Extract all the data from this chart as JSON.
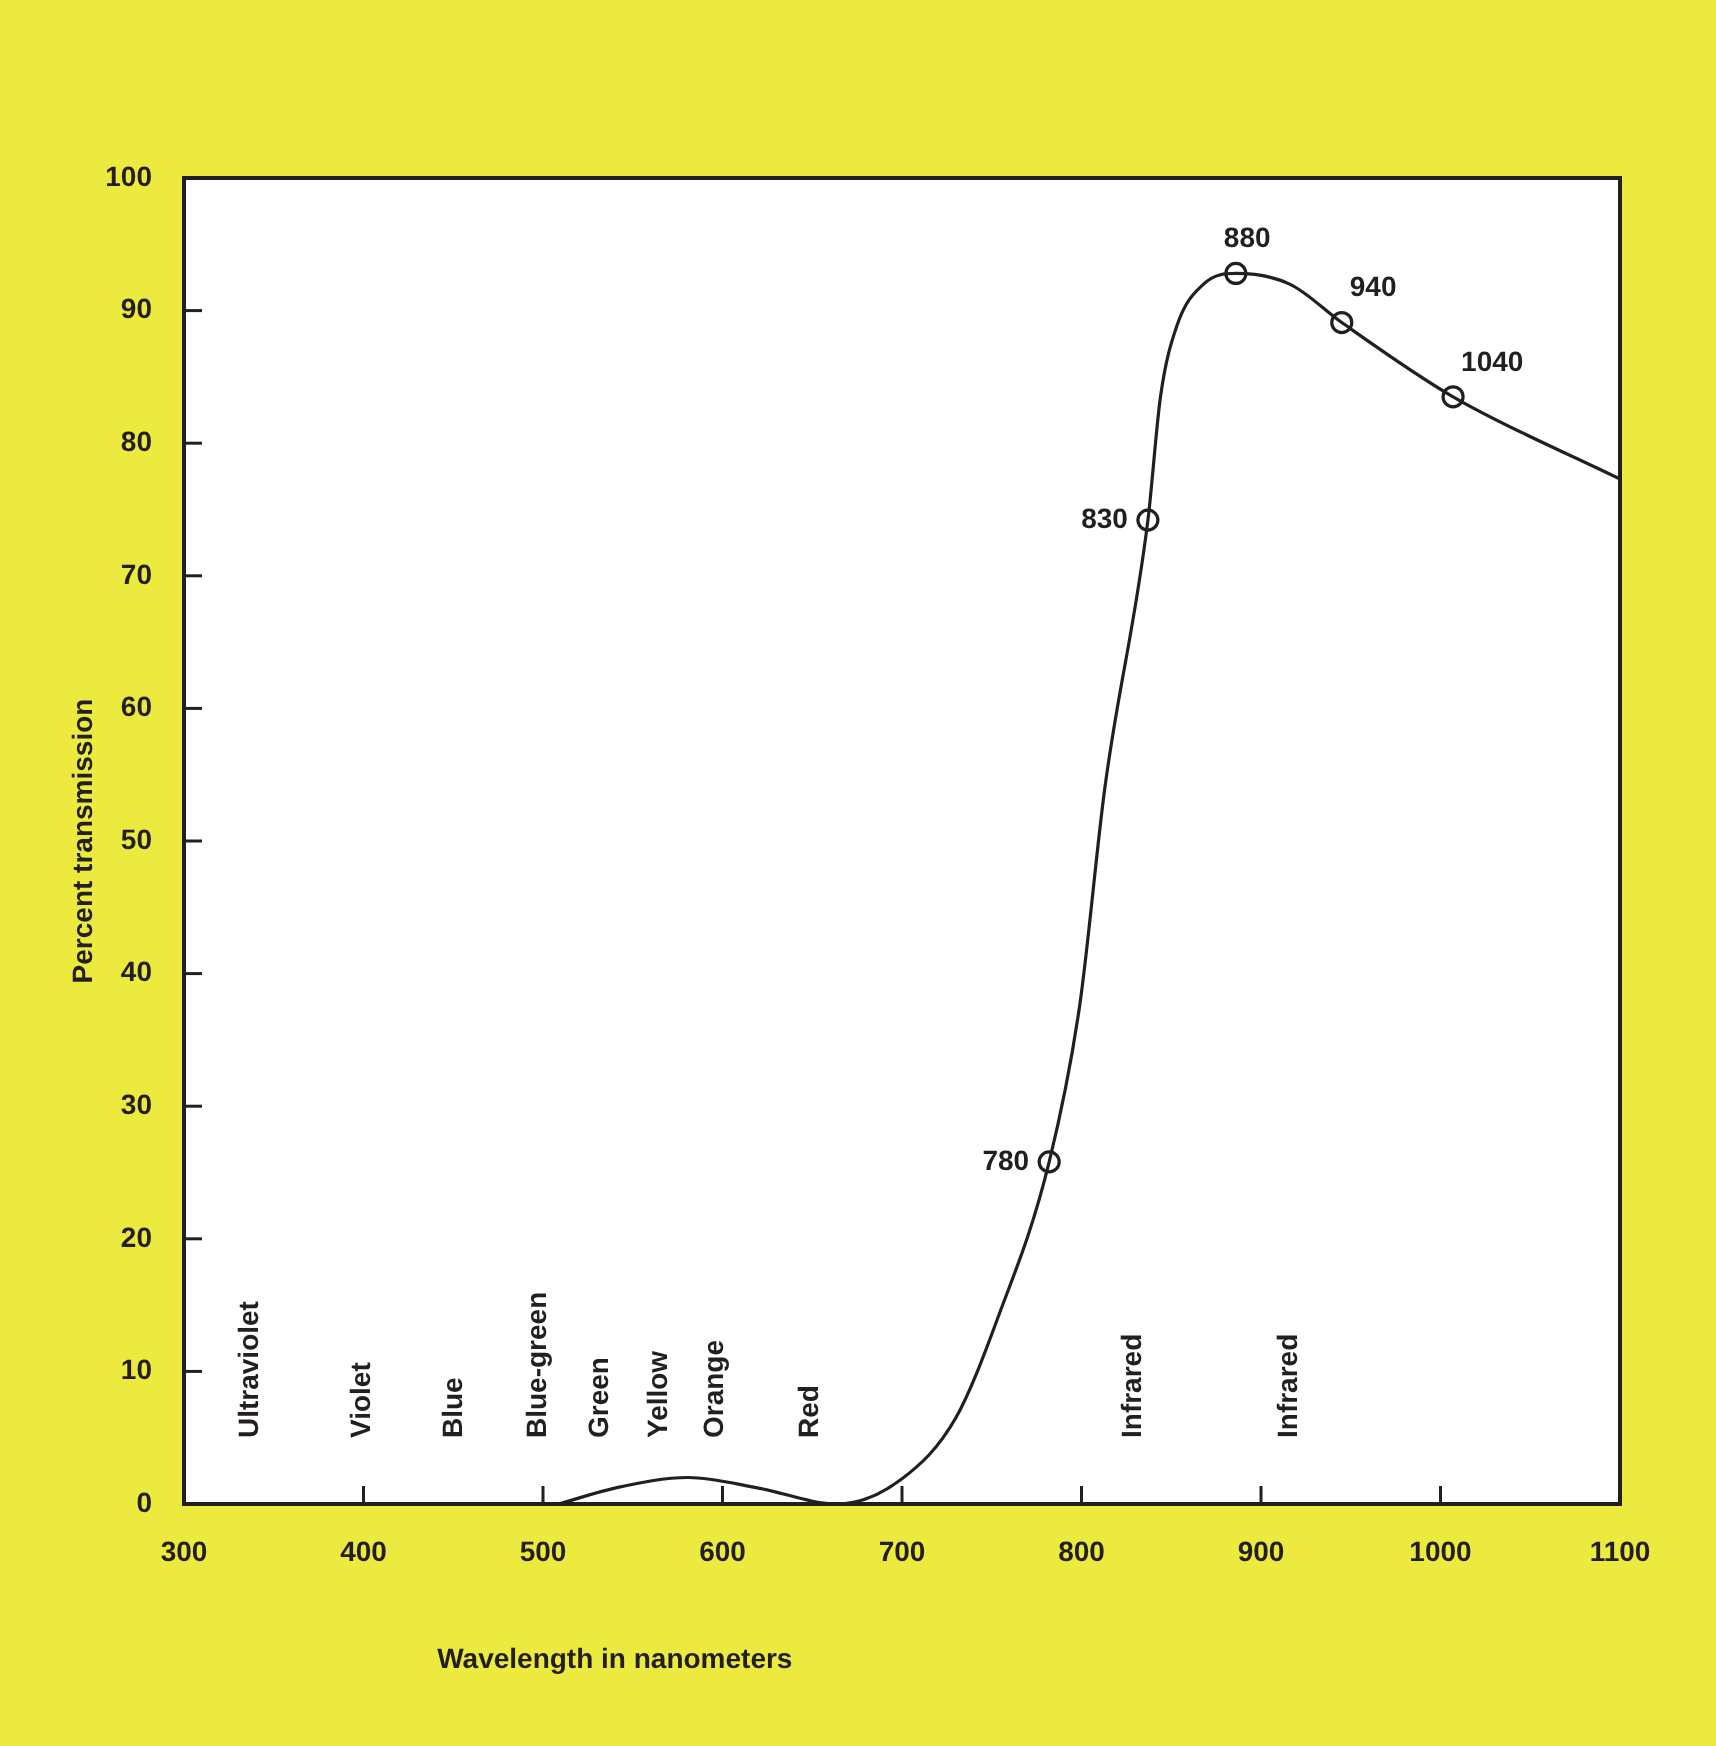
{
  "chart_data": {
    "type": "line",
    "xlabel": "Wavelength in nanometers",
    "ylabel": "Percent transmission",
    "xlim": [
      300,
      1100
    ],
    "ylim": [
      0,
      100
    ],
    "xticks": [
      300,
      400,
      500,
      600,
      700,
      800,
      900,
      1000,
      1100
    ],
    "yticks": [
      0,
      10,
      20,
      30,
      40,
      50,
      60,
      70,
      80,
      90,
      100
    ],
    "series": [
      {
        "marker": "none",
        "color": "#231f20",
        "x": [
          509,
          540,
          581,
          620,
          664,
          700,
          730,
          753,
          782,
          799,
          813,
          837,
          844,
          853,
          868,
          886,
          916,
          945,
          1007,
          1100
        ],
        "values": [
          0,
          1.2,
          2.0,
          1.2,
          0,
          1.9,
          6.5,
          13.9,
          25.8,
          37.6,
          54,
          74.2,
          83.5,
          88.8,
          92,
          92.8,
          92,
          89.1,
          83.5,
          77.3
        ]
      },
      {
        "type": "scatter",
        "marker": "circle",
        "color": "#231f20",
        "x": [
          782,
          837,
          886,
          945,
          1007
        ],
        "values": [
          25.8,
          74.2,
          92.8,
          89.1,
          83.5
        ]
      }
    ],
    "annotations": [
      {
        "text": "780",
        "x": 782,
        "y": 25.8
      },
      {
        "text": "830",
        "x": 837,
        "y": 74.2
      },
      {
        "text": "880",
        "x": 886,
        "y": 92.8
      },
      {
        "text": "940",
        "x": 945,
        "y": 89.1
      },
      {
        "text": "1040",
        "x": 1007,
        "y": 83.5
      },
      "Ultraviolet",
      "Violet",
      "Blue",
      "Blue-green",
      "Green",
      "Yellow",
      "Orange",
      "Red",
      "Infrared",
      "Infrared"
    ]
  }
}
